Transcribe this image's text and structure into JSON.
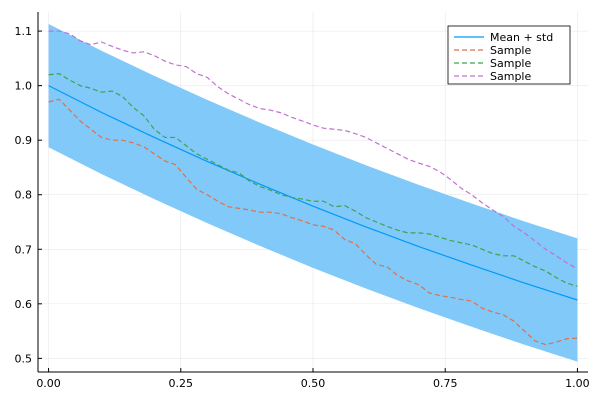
{
  "chart_data": {
    "type": "line",
    "title": "",
    "xlabel": "",
    "ylabel": "",
    "xlim": [
      -0.02,
      1.02
    ],
    "ylim": [
      0.475,
      1.135
    ],
    "x_ticks": [
      0.0,
      0.25,
      0.5,
      0.75,
      1.0
    ],
    "x_tick_labels": [
      "0.00",
      "0.25",
      "0.50",
      "0.75",
      "1.00"
    ],
    "y_ticks": [
      0.5,
      0.6,
      0.7,
      0.8,
      0.9,
      1.0,
      1.1
    ],
    "y_tick_labels": [
      "0.5",
      "0.6",
      "0.7",
      "0.8",
      "0.9",
      "1.0",
      "1.1"
    ],
    "grid": true,
    "legend_position": "top-right",
    "band": {
      "name": "Mean + std",
      "color": "#009AFA",
      "fill_color": "#80C9F9",
      "x": [
        0.0,
        0.1,
        0.2,
        0.3,
        0.4,
        0.5,
        0.6,
        0.7,
        0.8,
        0.9,
        1.0
      ],
      "mean": [
        1.0,
        0.951,
        0.905,
        0.861,
        0.819,
        0.779,
        0.741,
        0.705,
        0.671,
        0.638,
        0.607
      ],
      "lower": [
        0.887,
        0.838,
        0.792,
        0.748,
        0.706,
        0.666,
        0.628,
        0.592,
        0.558,
        0.525,
        0.494
      ],
      "upper": [
        1.113,
        1.064,
        1.018,
        0.974,
        0.932,
        0.892,
        0.854,
        0.818,
        0.784,
        0.751,
        0.72
      ]
    },
    "series": [
      {
        "name": "Sample",
        "color": "#E26F46",
        "dashed": true,
        "x": [
          0.0,
          0.02,
          0.04,
          0.06,
          0.08,
          0.1,
          0.12,
          0.14,
          0.16,
          0.18,
          0.2,
          0.22,
          0.24,
          0.26,
          0.28,
          0.3,
          0.32,
          0.34,
          0.36,
          0.38,
          0.4,
          0.42,
          0.44,
          0.46,
          0.48,
          0.5,
          0.52,
          0.54,
          0.56,
          0.58,
          0.6,
          0.62,
          0.64,
          0.66,
          0.68,
          0.7,
          0.72,
          0.74,
          0.76,
          0.78,
          0.8,
          0.82,
          0.84,
          0.86,
          0.88,
          0.9,
          0.92,
          0.94,
          0.96,
          0.98,
          1.0
        ],
        "values": [
          0.97,
          0.975,
          0.955,
          0.935,
          0.92,
          0.905,
          0.9,
          0.9,
          0.895,
          0.888,
          0.875,
          0.862,
          0.855,
          0.832,
          0.81,
          0.8,
          0.788,
          0.778,
          0.775,
          0.772,
          0.768,
          0.768,
          0.765,
          0.758,
          0.752,
          0.745,
          0.742,
          0.735,
          0.718,
          0.71,
          0.69,
          0.672,
          0.668,
          0.652,
          0.642,
          0.635,
          0.62,
          0.615,
          0.612,
          0.608,
          0.605,
          0.592,
          0.585,
          0.58,
          0.568,
          0.55,
          0.532,
          0.525,
          0.53,
          0.536,
          0.537
        ]
      },
      {
        "name": "Sample",
        "color": "#3EA44E",
        "dashed": true,
        "x": [
          0.0,
          0.02,
          0.04,
          0.06,
          0.08,
          0.1,
          0.12,
          0.14,
          0.16,
          0.18,
          0.2,
          0.22,
          0.24,
          0.26,
          0.28,
          0.3,
          0.32,
          0.34,
          0.36,
          0.38,
          0.4,
          0.42,
          0.44,
          0.46,
          0.48,
          0.5,
          0.52,
          0.54,
          0.56,
          0.58,
          0.6,
          0.62,
          0.64,
          0.66,
          0.68,
          0.7,
          0.72,
          0.74,
          0.76,
          0.78,
          0.8,
          0.82,
          0.84,
          0.86,
          0.88,
          0.9,
          0.92,
          0.94,
          0.96,
          0.98,
          1.0
        ],
        "values": [
          1.02,
          1.022,
          1.01,
          1.0,
          0.995,
          0.988,
          0.99,
          0.98,
          0.96,
          0.945,
          0.92,
          0.905,
          0.905,
          0.89,
          0.875,
          0.865,
          0.855,
          0.845,
          0.84,
          0.825,
          0.815,
          0.808,
          0.8,
          0.795,
          0.792,
          0.788,
          0.788,
          0.778,
          0.78,
          0.77,
          0.758,
          0.75,
          0.742,
          0.735,
          0.73,
          0.73,
          0.728,
          0.722,
          0.716,
          0.712,
          0.708,
          0.7,
          0.692,
          0.688,
          0.688,
          0.678,
          0.668,
          0.66,
          0.648,
          0.638,
          0.632
        ]
      },
      {
        "name": "Sample",
        "color": "#C271D2",
        "dashed": true,
        "x": [
          0.0,
          0.02,
          0.04,
          0.06,
          0.08,
          0.1,
          0.12,
          0.14,
          0.16,
          0.18,
          0.2,
          0.22,
          0.24,
          0.26,
          0.28,
          0.3,
          0.32,
          0.34,
          0.36,
          0.38,
          0.4,
          0.42,
          0.44,
          0.46,
          0.48,
          0.5,
          0.52,
          0.54,
          0.56,
          0.58,
          0.6,
          0.62,
          0.64,
          0.66,
          0.68,
          0.7,
          0.72,
          0.74,
          0.76,
          0.78,
          0.8,
          0.82,
          0.84,
          0.86,
          0.88,
          0.9,
          0.92,
          0.94,
          0.96,
          0.98,
          1.0
        ],
        "values": [
          1.1,
          1.1,
          1.095,
          1.082,
          1.075,
          1.08,
          1.072,
          1.065,
          1.06,
          1.062,
          1.055,
          1.045,
          1.038,
          1.035,
          1.022,
          1.015,
          0.998,
          0.985,
          0.975,
          0.965,
          0.958,
          0.955,
          0.95,
          0.942,
          0.935,
          0.928,
          0.922,
          0.92,
          0.918,
          0.912,
          0.905,
          0.895,
          0.885,
          0.875,
          0.865,
          0.858,
          0.852,
          0.842,
          0.828,
          0.812,
          0.8,
          0.785,
          0.772,
          0.76,
          0.742,
          0.73,
          0.715,
          0.7,
          0.688,
          0.675,
          0.664
        ]
      }
    ]
  }
}
